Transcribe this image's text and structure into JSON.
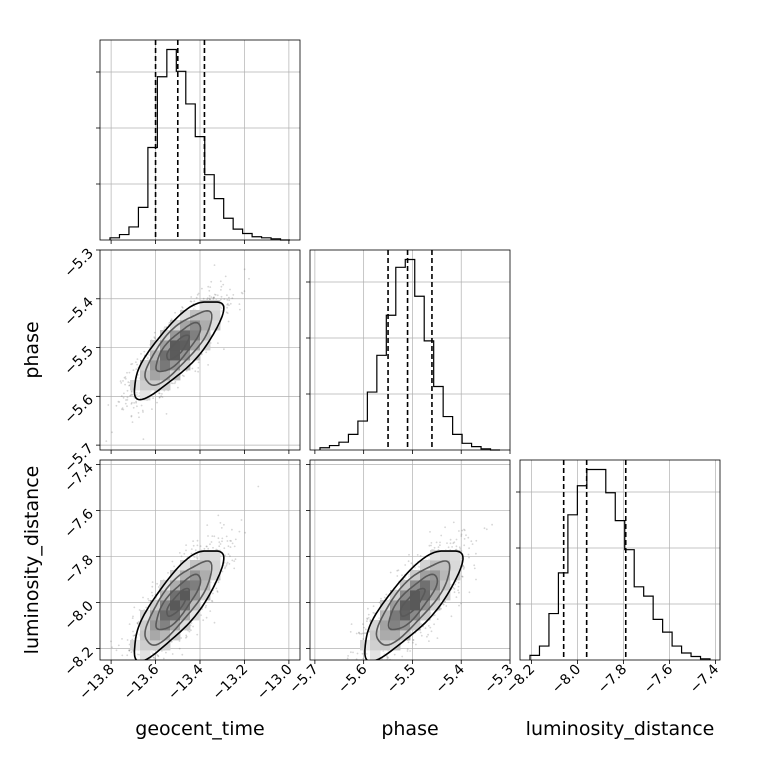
{
  "chart_data": {
    "type": "corner",
    "parameters": [
      "geocent_time",
      "phase",
      "luminosity_distance"
    ],
    "axis_labels": [
      "geocent_time",
      "phase",
      "luminosity_distance"
    ],
    "ranges": [
      [
        -13.85,
        -12.95
      ],
      [
        -5.71,
        -5.3
      ],
      [
        -8.25,
        -7.38
      ]
    ],
    "ticks": [
      [
        "−13.8",
        "−13.6",
        "−13.4",
        "−13.2",
        "−13.0"
      ],
      [
        "−5.7",
        "−5.6",
        "−5.5",
        "−5.4",
        "−5.3"
      ],
      [
        "−8.2",
        "−8.0",
        "−7.8",
        "−7.6",
        "−7.4"
      ]
    ],
    "tick_values": [
      [
        -13.8,
        -13.6,
        -13.4,
        -13.2,
        -13.0
      ],
      [
        -5.7,
        -5.6,
        -5.5,
        -5.4,
        -5.3
      ],
      [
        -8.2,
        -8.0,
        -7.8,
        -7.6,
        -7.4
      ]
    ],
    "means": [
      -13.5,
      -5.5,
      -8.0
    ],
    "sigmas": [
      0.1,
      0.05,
      0.12
    ],
    "correlation": 0.8,
    "quantiles_16_50_84": [
      [
        -13.6,
        -13.5,
        -13.38
      ],
      [
        -5.55,
        -5.51,
        -5.46
      ],
      [
        -8.06,
        -7.96,
        -7.79
      ]
    ],
    "histograms": [
      [
        2,
        5,
        12,
        30,
        85,
        150,
        175,
        155,
        125,
        95,
        60,
        38,
        20,
        10,
        6,
        3,
        2,
        1,
        0
      ],
      [
        2,
        4,
        7,
        14,
        26,
        52,
        85,
        121,
        164,
        171,
        138,
        98,
        57,
        30,
        14,
        6,
        3,
        1,
        0
      ],
      [
        4,
        12,
        40,
        75,
        125,
        150,
        164,
        164,
        144,
        120,
        95,
        63,
        55,
        35,
        24,
        12,
        6,
        3,
        1
      ]
    ],
    "grid": true
  }
}
